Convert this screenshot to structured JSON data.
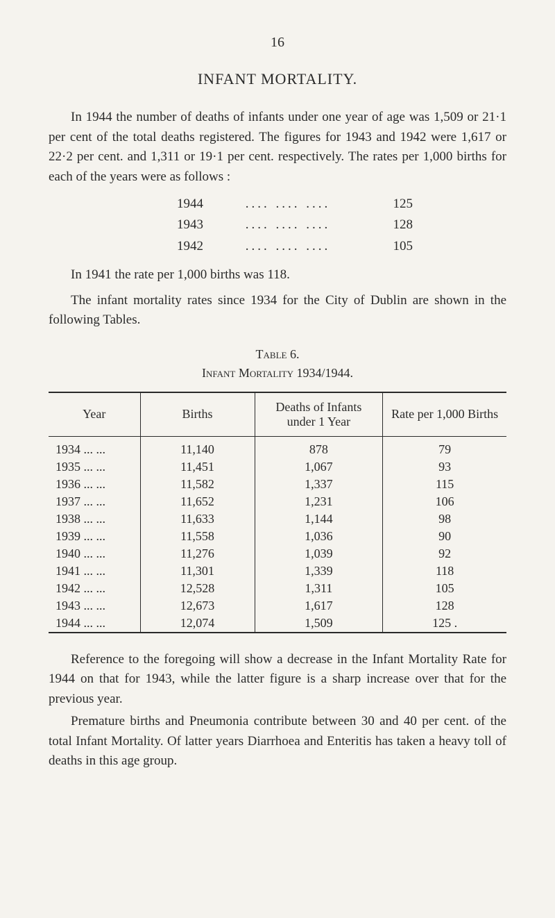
{
  "page_number": "16",
  "title": "INFANT MORTALITY.",
  "para1": "In 1944 the number of deaths of infants under one year of age was 1,509 or 21·1 per cent of the total deaths registered. The figures for 1943 and 1942 were 1,617 or 22·2 per cent. and 1,311 or 19·1 per cent. respectively. The rates per 1,000 births for each of the years were as follows :",
  "year_rates": [
    {
      "year": "1944",
      "dots": "....    ....    ....",
      "value": "125"
    },
    {
      "year": "1943",
      "dots": "....    ....    ....",
      "value": "128"
    },
    {
      "year": "1942",
      "dots": "....    ....    ....",
      "value": "105"
    }
  ],
  "para2": "In 1941 the rate per 1,000 births was 118.",
  "para3": "The infant mortality rates since 1934 for the City of Dublin are shown in the following Tables.",
  "table_heading": "Table 6.",
  "table_subheading": "Infant Mortality 1934/1944.",
  "table": {
    "columns": [
      "Year",
      "Births",
      "Deaths of Infants under 1 Year",
      "Rate per 1,000 Births"
    ],
    "rows": [
      [
        "1934 ...    ...",
        "11,140",
        "878",
        "79"
      ],
      [
        "1935 ...    ...",
        "11,451",
        "1,067",
        "93"
      ],
      [
        "1936 ...    ...",
        "11,582",
        "1,337",
        "115"
      ],
      [
        "1937 ...    ...",
        "11,652",
        "1,231",
        "106"
      ],
      [
        "1938 ...    ...",
        "11,633",
        "1,144",
        "98"
      ],
      [
        "1939 ...    ...",
        "11,558",
        "1,036",
        "90"
      ],
      [
        "1940 ...    ...",
        "11,276",
        "1,039",
        "92"
      ],
      [
        "1941 ...    ...",
        "11,301",
        "1,339",
        "118"
      ],
      [
        "1942 ...    ...",
        "12,528",
        "1,311",
        "105"
      ],
      [
        "1943 ...    ...",
        "12,673",
        "1,617",
        "128"
      ],
      [
        "1944 ...    ...",
        "12,074",
        "1,509",
        "125  ."
      ]
    ]
  },
  "para4": "Reference to the foregoing will show a decrease in the Infant Mortality Rate for 1944 on that for 1943, while the latter figure is a sharp increase over that for the previous year.",
  "para5": "Premature births and Pneumonia contribute between 30 and 40 per cent. of the total Infant Mortality. Of latter years Diarrhoea and Enteritis has taken a heavy toll of deaths in this age group."
}
